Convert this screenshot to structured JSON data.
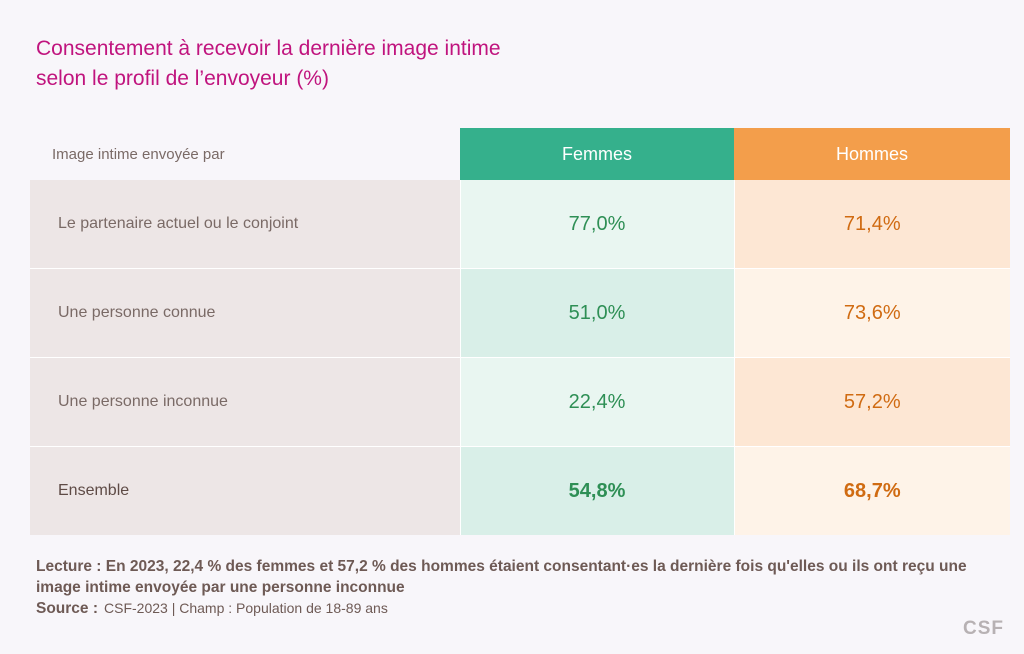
{
  "title": {
    "line1": "Consentement à recevoir la dernière image intime",
    "line2": "selon le profil de l’envoyeur (%)"
  },
  "colors": {
    "title": "#c0147e",
    "femmes_header": "#35b08c",
    "hommes_header": "#f39e4b",
    "femmes_value": "#2e8f55",
    "hommes_value": "#d06b12"
  },
  "chart_data": {
    "type": "table",
    "row_header": "Image intime envoyée par",
    "columns": [
      "Femmes",
      "Hommes"
    ],
    "rows": [
      {
        "label": "Le partenaire actuel ou le conjoint",
        "femmes": "77,0%",
        "hommes": "71,4%"
      },
      {
        "label": "Une personne connue",
        "femmes": "51,0%",
        "hommes": "73,6%"
      },
      {
        "label": "Une personne inconnue",
        "femmes": "22,4%",
        "hommes": "57,2%"
      },
      {
        "label": "Ensemble",
        "femmes": "54,8%",
        "hommes": "68,7%"
      }
    ]
  },
  "footer": {
    "reading": "Lecture : En 2023, 22,4 % des femmes et 57,2 % des hommes étaient consentant·es la dernière fois qu'elles ou ils ont reçu une image intime envoyée par une personne inconnue",
    "source_label": "Source :",
    "source_value": "CSF-2023  |  Champ : Population de 18-89 ans"
  },
  "logo": "CSF"
}
